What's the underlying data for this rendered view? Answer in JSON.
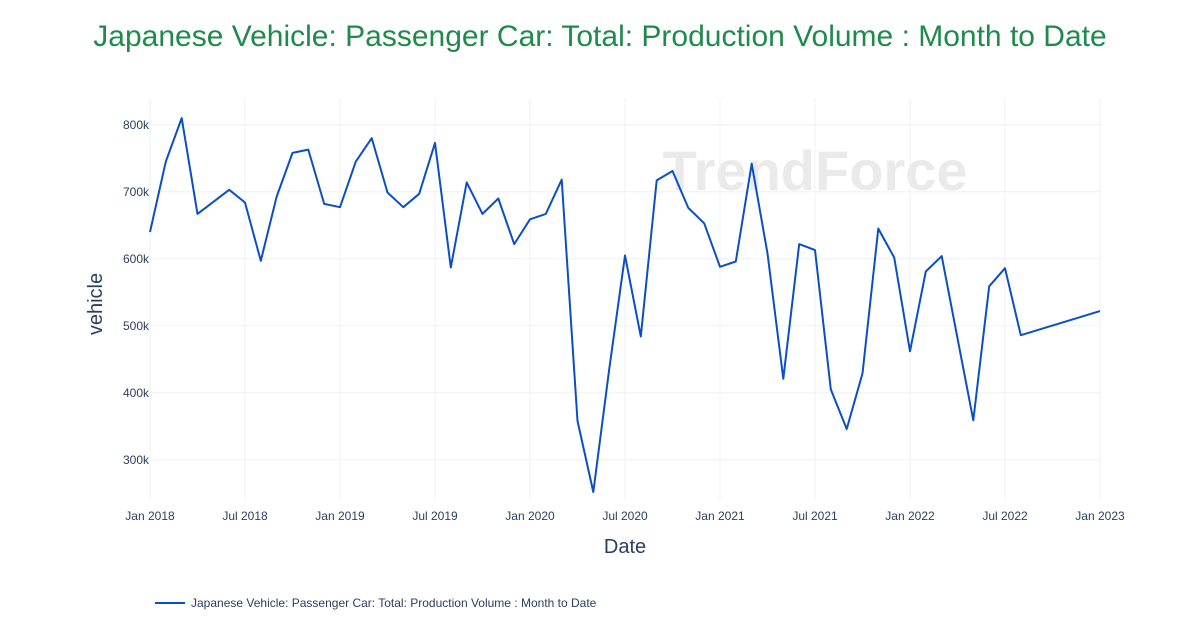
{
  "chart_data": {
    "type": "line",
    "title": "Japanese Vehicle: Passenger Car: Total: Production Volume : Month to Date",
    "xlabel": "Date",
    "ylabel": "vehicle",
    "x_ticks": [
      "Jan 2018",
      "Jul 2018",
      "Jan 2019",
      "Jul 2019",
      "Jan 2020",
      "Jul 2020",
      "Jan 2021",
      "Jul 2021",
      "Jan 2022",
      "Jul 2022",
      "Jan 2023"
    ],
    "y_ticks": [
      "300k",
      "400k",
      "500k",
      "600k",
      "700k",
      "800k"
    ],
    "ylim": [
      240000,
      840000
    ],
    "xlim": [
      "2018-01",
      "2023-01"
    ],
    "grid": true,
    "legend_position": "bottom-left",
    "watermark": "TrendForce",
    "colors": {
      "line": "#0b4fc4",
      "title": "#1f8a4c"
    },
    "series": [
      {
        "name": "Japanese Vehicle: Passenger Car: Total: Production Volume : Month to Date",
        "points": [
          [
            "2018-01",
            640000
          ],
          [
            "2018-02",
            745000
          ],
          [
            "2018-03",
            810000
          ],
          [
            "2018-04",
            667000
          ],
          [
            "2018-06",
            703000
          ],
          [
            "2018-07",
            684000
          ],
          [
            "2018-08",
            597000
          ],
          [
            "2018-09",
            693000
          ],
          [
            "2018-10",
            758000
          ],
          [
            "2018-11",
            763000
          ],
          [
            "2018-12",
            682000
          ],
          [
            "2019-01",
            677000
          ],
          [
            "2019-02",
            745000
          ],
          [
            "2019-03",
            780000
          ],
          [
            "2019-04",
            699000
          ],
          [
            "2019-05",
            677000
          ],
          [
            "2019-06",
            697000
          ],
          [
            "2019-07",
            773000
          ],
          [
            "2019-08",
            587000
          ],
          [
            "2019-09",
            714000
          ],
          [
            "2019-10",
            667000
          ],
          [
            "2019-11",
            690000
          ],
          [
            "2019-12",
            622000
          ],
          [
            "2020-01",
            659000
          ],
          [
            "2020-02",
            667000
          ],
          [
            "2020-03",
            718000
          ],
          [
            "2020-04",
            358000
          ],
          [
            "2020-05",
            252000
          ],
          [
            "2020-06",
            435000
          ],
          [
            "2020-07",
            605000
          ],
          [
            "2020-08",
            484000
          ],
          [
            "2020-09",
            717000
          ],
          [
            "2020-10",
            731000
          ],
          [
            "2020-11",
            676000
          ],
          [
            "2020-12",
            653000
          ],
          [
            "2021-01",
            588000
          ],
          [
            "2021-02",
            596000
          ],
          [
            "2021-03",
            742000
          ],
          [
            "2021-04",
            608000
          ],
          [
            "2021-05",
            421000
          ],
          [
            "2021-06",
            622000
          ],
          [
            "2021-07",
            613000
          ],
          [
            "2021-08",
            405000
          ],
          [
            "2021-09",
            346000
          ],
          [
            "2021-10",
            429000
          ],
          [
            "2021-11",
            645000
          ],
          [
            "2021-12",
            602000
          ],
          [
            "2022-01",
            462000
          ],
          [
            "2022-02",
            581000
          ],
          [
            "2022-03",
            604000
          ],
          [
            "2022-05",
            359000
          ],
          [
            "2022-06",
            559000
          ],
          [
            "2022-07",
            586000
          ],
          [
            "2022-08",
            486000
          ],
          [
            "2023-01",
            522000
          ]
        ]
      }
    ]
  }
}
